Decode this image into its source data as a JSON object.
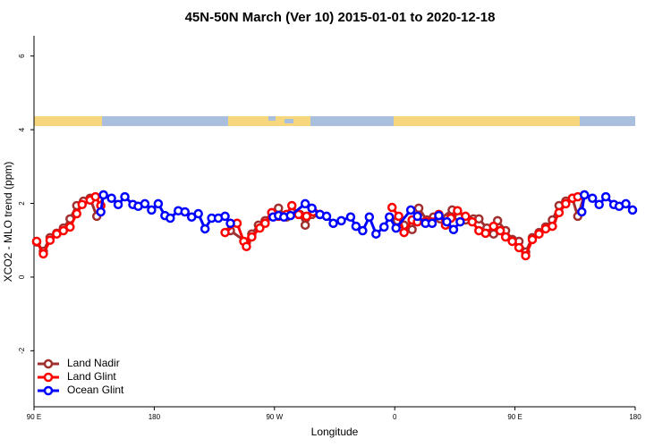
{
  "chart_data": {
    "type": "line",
    "title": "45N-50N March (Ver 10)   2015-01-01 to 2020-12-18",
    "x_label": "Longitude",
    "y_label": "XCO2 - MLO trend (ppm)",
    "xlim": [
      90,
      540
    ],
    "ylim": [
      -3.52,
      6.55
    ],
    "xticks": [
      {
        "value": 90,
        "label": "90 E"
      },
      180,
      {
        "value": 270,
        "label": "90 W"
      },
      {
        "value": 360,
        "label": "0"
      },
      {
        "value": 450,
        "label": "90 E"
      },
      {
        "value": 540,
        "label": "180"
      }
    ],
    "yticks": [
      -2,
      0,
      2,
      4,
      6
    ],
    "legend": "bottomleft",
    "series": [
      {
        "name": "Land Nadir",
        "color": "#a03030",
        "x": [
          92,
          97,
          102,
          107,
          112,
          117,
          122,
          127,
          132,
          137,
          142,
          null,
          237,
          249,
          253,
          258,
          263,
          268,
          273,
          279,
          283,
          289,
          293,
          298,
          null,
          362,
          367,
          373,
          378,
          384,
          389,
          394,
          403,
          408,
          413,
          419,
          423,
          429,
          434,
          437,
          443,
          448,
          453,
          458,
          463,
          468,
          473,
          478,
          483,
          488,
          493,
          497,
          502
        ],
        "values": [
          0.95,
          0.7,
          1.07,
          1.19,
          1.33,
          1.58,
          1.94,
          2.06,
          2.14,
          1.65,
          2.23,
          null,
          1.26,
          0.95,
          1.17,
          1.41,
          1.53,
          1.75,
          1.87,
          1.63,
          1.75,
          1.7,
          1.41,
          1.7,
          null,
          1.53,
          1.41,
          1.29,
          1.87,
          1.55,
          1.63,
          1.58,
          1.82,
          1.63,
          1.55,
          1.58,
          1.58,
          1.33,
          1.17,
          1.53,
          1.26,
          1.02,
          0.97,
          0.68,
          1.07,
          1.21,
          1.36,
          1.55,
          1.94,
          2.06,
          2.14,
          1.65,
          2.23
        ]
      },
      {
        "name": "Land Glint",
        "color": "#ff0000",
        "x": [
          92,
          97,
          102,
          107,
          112,
          117,
          122,
          126,
          132,
          136,
          140,
          null,
          233,
          242,
          247,
          249,
          253,
          259,
          263,
          268,
          273,
          279,
          283,
          288,
          294,
          299,
          304,
          null,
          358,
          363,
          367,
          373,
          377,
          383,
          387,
          393,
          398,
          402,
          407,
          413,
          418,
          423,
          428,
          434,
          439,
          443,
          448,
          453,
          458,
          463,
          468,
          473,
          478,
          483,
          488,
          493,
          497
        ],
        "values": [
          0.97,
          0.63,
          1.0,
          1.17,
          1.26,
          1.36,
          1.72,
          1.97,
          2.09,
          2.18,
          1.94,
          null,
          1.21,
          1.46,
          0.97,
          0.83,
          1.09,
          1.33,
          1.46,
          1.75,
          1.65,
          1.7,
          1.94,
          1.7,
          1.65,
          1.77,
          1.7,
          null,
          1.89,
          1.65,
          1.21,
          1.55,
          1.5,
          1.5,
          1.5,
          1.7,
          1.41,
          1.6,
          1.8,
          1.65,
          1.5,
          1.26,
          1.19,
          1.38,
          1.26,
          1.09,
          0.97,
          0.8,
          0.58,
          1.02,
          1.17,
          1.31,
          1.38,
          1.75,
          1.99,
          2.14,
          2.18
        ]
      },
      {
        "name": "Ocean Glint",
        "color": "#0000ff",
        "x": [
          140,
          142,
          148,
          153,
          158,
          164,
          168,
          173,
          178,
          183,
          188,
          192,
          198,
          203,
          208,
          213,
          218,
          223,
          228,
          233,
          237,
          null,
          269,
          273,
          277,
          282,
          293,
          298,
          304,
          309,
          314,
          320,
          327,
          331,
          336,
          341,
          346,
          352,
          356,
          361,
          372,
          377,
          383,
          388,
          393,
          399,
          404,
          409,
          null,
          500,
          502,
          508,
          513,
          518,
          524,
          528,
          533,
          538
        ],
        "values": [
          1.77,
          2.23,
          2.14,
          1.97,
          2.18,
          1.97,
          1.92,
          1.99,
          1.82,
          1.99,
          1.67,
          1.6,
          1.8,
          1.77,
          1.63,
          1.72,
          1.31,
          1.6,
          1.6,
          1.65,
          1.46,
          null,
          1.63,
          1.67,
          1.63,
          1.67,
          1.99,
          1.87,
          1.7,
          1.65,
          1.46,
          1.53,
          1.63,
          1.38,
          1.26,
          1.63,
          1.17,
          1.36,
          1.63,
          1.33,
          1.82,
          1.65,
          1.46,
          1.46,
          1.67,
          1.5,
          1.29,
          1.5,
          null,
          1.77,
          2.23,
          2.14,
          1.97,
          2.18,
          1.97,
          1.92,
          1.99,
          1.82
        ]
      }
    ]
  }
}
